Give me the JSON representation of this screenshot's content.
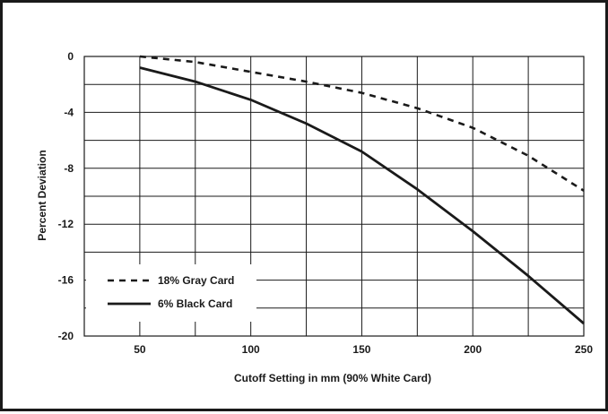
{
  "chart_data": {
    "type": "line",
    "xlabel": "Cutoff Setting in mm (90% White Card)",
    "ylabel": "Percent Deviation",
    "xlim": [
      25,
      250
    ],
    "ylim": [
      -20,
      0
    ],
    "x_ticks": [
      50,
      100,
      150,
      200,
      250
    ],
    "y_ticks": [
      0,
      -4,
      -8,
      -12,
      -16,
      -20
    ],
    "grid": true,
    "legend_position": "bottom-left",
    "series": [
      {
        "name": "18% Gray Card",
        "style": "dashed",
        "x": [
          50,
          75,
          100,
          125,
          150,
          175,
          200,
          225,
          250
        ],
        "y": [
          0,
          -0.4,
          -1.1,
          -1.8,
          -2.6,
          -3.7,
          -5.1,
          -7.1,
          -9.6
        ]
      },
      {
        "name": "6% Black Card",
        "style": "solid",
        "x": [
          50,
          75,
          100,
          125,
          150,
          175,
          200,
          225,
          250
        ],
        "y": [
          -0.8,
          -1.8,
          -3.1,
          -4.8,
          -6.8,
          -9.5,
          -12.5,
          -15.7,
          -19.1
        ]
      }
    ],
    "colors": {
      "line": "#1a1a1a",
      "grid": "#1a1a1a"
    }
  }
}
